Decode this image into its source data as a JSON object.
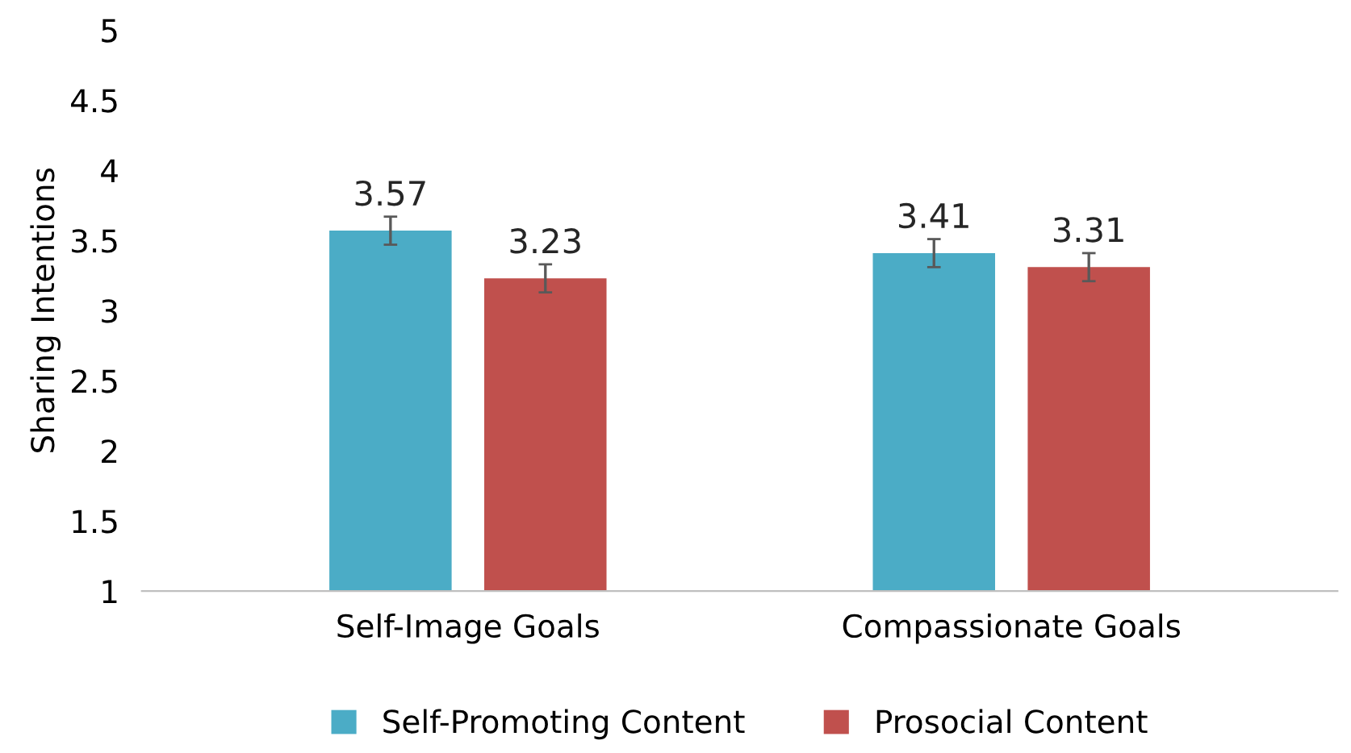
{
  "chart_data": {
    "type": "bar",
    "ylabel": "Sharing Intentions",
    "categories": [
      "Self-Image Goals",
      "Compassionate Goals"
    ],
    "series": [
      {
        "name": "Self-Promoting Content",
        "color": "#4bacc6",
        "values": [
          3.57,
          3.41
        ],
        "errors": [
          0.1,
          0.1
        ]
      },
      {
        "name": "Prosocial Content",
        "color": "#c0504d",
        "values": [
          3.23,
          3.31
        ],
        "errors": [
          0.1,
          0.1
        ]
      }
    ],
    "ylim": [
      1,
      5
    ],
    "yticks": [
      1,
      1.5,
      2,
      2.5,
      3,
      3.5,
      4,
      4.5,
      5
    ],
    "data_labels": true,
    "grid": false,
    "legend": "bottom"
  }
}
